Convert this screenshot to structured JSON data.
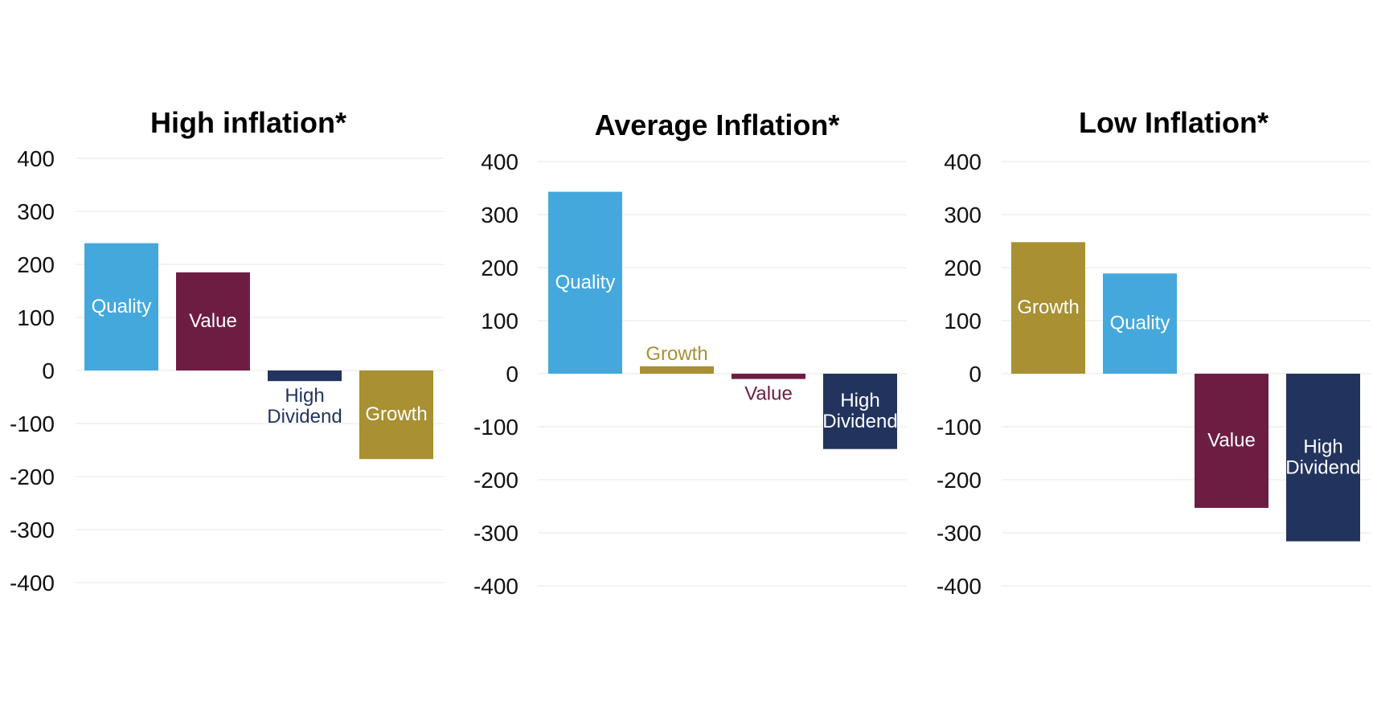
{
  "colors": {
    "Quality": "#45a8dc",
    "Value": "#6e1d42",
    "High Dividend": "#22345e",
    "Growth": "#a89033"
  },
  "chart_data": [
    {
      "type": "bar",
      "title": "High inflation*",
      "categories": [
        "Quality",
        "Value",
        "High Dividend",
        "Growth"
      ],
      "values": [
        240,
        185,
        -20,
        -167
      ],
      "ylim": [
        -400,
        400
      ],
      "yticks": [
        400,
        300,
        200,
        100,
        0,
        -100,
        -200,
        -300,
        -400
      ],
      "grid": true
    },
    {
      "type": "bar",
      "title": "Average Inflation*",
      "categories": [
        "Quality",
        "Growth",
        "Value",
        "High Dividend"
      ],
      "values": [
        343,
        14,
        -10,
        -142
      ],
      "ylim": [
        -400,
        400
      ],
      "yticks": [
        400,
        300,
        200,
        100,
        0,
        -100,
        -200,
        -300,
        -400
      ],
      "grid": true
    },
    {
      "type": "bar",
      "title": "Low Inflation*",
      "categories": [
        "Growth",
        "Quality",
        "Value",
        "High Dividend"
      ],
      "values": [
        248,
        189,
        -253,
        -316
      ],
      "ylim": [
        -400,
        400
      ],
      "yticks": [
        400,
        300,
        200,
        100,
        0,
        -100,
        -200,
        -300,
        -400
      ],
      "grid": true
    }
  ]
}
